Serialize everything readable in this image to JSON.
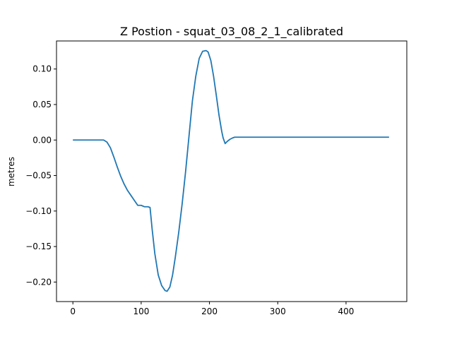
{
  "chart_data": {
    "type": "line",
    "title": "Z Postion - squat_03_08_2_1_calibrated",
    "xlabel": "",
    "ylabel": "metres",
    "xlim": [
      -24,
      489
    ],
    "ylim": [
      -0.2275,
      0.1395
    ],
    "x_ticks": [
      0,
      100,
      200,
      300,
      400
    ],
    "y_ticks": [
      0.1,
      0.05,
      0.0,
      -0.05,
      -0.1,
      -0.15,
      -0.2
    ],
    "y_tick_labels": [
      "0.10",
      "0.05",
      "0.00",
      "−0.05",
      "−0.10",
      "−0.15",
      "−0.20"
    ],
    "grid": false,
    "series": [
      {
        "color": "#1f77b4",
        "x": [
          0,
          10,
          20,
          30,
          40,
          45,
          50,
          55,
          60,
          65,
          70,
          75,
          80,
          85,
          90,
          95,
          100,
          105,
          110,
          113,
          116,
          120,
          125,
          130,
          135,
          138,
          142,
          146,
          150,
          155,
          160,
          165,
          170,
          175,
          180,
          185,
          190,
          195,
          198,
          202,
          206,
          210,
          214,
          218,
          220,
          223,
          226,
          230,
          234,
          237,
          250,
          300,
          350,
          400,
          450,
          463
        ],
        "y": [
          0.0,
          0.0,
          0.0,
          0.0,
          0.0,
          0.0,
          -0.003,
          -0.011,
          -0.024,
          -0.038,
          -0.051,
          -0.062,
          -0.071,
          -0.078,
          -0.085,
          -0.092,
          -0.092,
          -0.094,
          -0.094,
          -0.095,
          -0.125,
          -0.16,
          -0.19,
          -0.205,
          -0.212,
          -0.213,
          -0.207,
          -0.19,
          -0.165,
          -0.13,
          -0.09,
          -0.045,
          0.005,
          0.055,
          0.09,
          0.115,
          0.125,
          0.126,
          0.124,
          0.112,
          0.09,
          0.063,
          0.035,
          0.012,
          0.003,
          -0.005,
          -0.002,
          0.001,
          0.003,
          0.004,
          0.004,
          0.004,
          0.004,
          0.004,
          0.004,
          0.004
        ]
      }
    ]
  }
}
